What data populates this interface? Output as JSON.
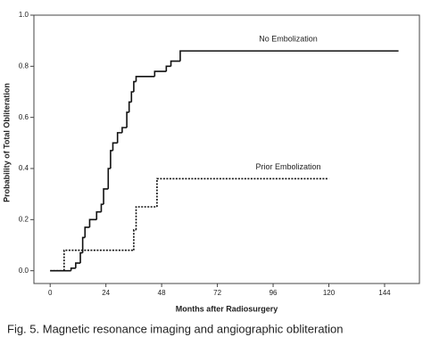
{
  "chart_data": {
    "type": "step",
    "x_label": "Months after Radiosurgery",
    "y_label": "Probability of Total Obliteration",
    "caption": "Fig. 5. Magnetic resonance imaging and angiographic obliteration",
    "xlim": [
      -7,
      159
    ],
    "ylim": [
      -0.05,
      1.0
    ],
    "xticks": [
      0,
      24,
      48,
      72,
      96,
      120,
      144
    ],
    "yticks": [
      {
        "value": 0,
        "label": "0.0"
      },
      {
        "value": 0.2,
        "label": "0.2"
      },
      {
        "value": 0.4,
        "label": "0.4"
      },
      {
        "value": 0.6,
        "label": "0.6"
      },
      {
        "value": 0.8,
        "label": "0.8"
      },
      {
        "value": 1.0,
        "label": "1.0"
      }
    ],
    "series": [
      {
        "name": "No Embolization",
        "color": "#111111",
        "dashed": false,
        "x": [
          0,
          9,
          11,
          13,
          14,
          15,
          17,
          20,
          22,
          23,
          25,
          26,
          27,
          29,
          31,
          33,
          34,
          35,
          36,
          37,
          45,
          50,
          52,
          56,
          150
        ],
        "values": [
          0,
          0.01,
          0.03,
          0.07,
          0.13,
          0.17,
          0.2,
          0.23,
          0.26,
          0.32,
          0.4,
          0.47,
          0.5,
          0.54,
          0.56,
          0.62,
          0.66,
          0.7,
          0.74,
          0.76,
          0.78,
          0.8,
          0.82,
          0.86,
          0.86
        ]
      },
      {
        "name": "Prior Embolization",
        "color": "#111111",
        "dashed": true,
        "x": [
          0,
          6,
          36,
          37,
          46,
          120
        ],
        "values": [
          0,
          0.08,
          0.16,
          0.25,
          0.36,
          0.36
        ]
      }
    ]
  }
}
